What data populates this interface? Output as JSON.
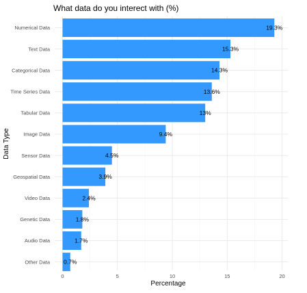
{
  "chart_data": {
    "type": "bar",
    "orientation": "horizontal",
    "title": "What data do you interect with (%)",
    "xlabel": "Percentage",
    "ylabel": "Data Type",
    "categories": [
      "Numerical Data",
      "Text Data",
      "Categorical Data",
      "Time Series Data",
      "Tabular Data",
      "Image Data",
      "Sensor Data",
      "Geospatial Data",
      "Video Data",
      "Genetic Data",
      "Audio Data",
      "Other Data"
    ],
    "values": [
      19.3,
      15.3,
      14.3,
      13.6,
      13,
      9.4,
      4.5,
      3.9,
      2.4,
      1.8,
      1.7,
      0.7
    ],
    "data_labels": [
      "19.3%",
      "15.3%",
      "14.3%",
      "13.6%",
      "13%",
      "9.4%",
      "4.5%",
      "3.9%",
      "2.4%",
      "1.8%",
      "1.7%",
      "0.7%"
    ],
    "x_ticks": [
      0,
      5,
      10,
      15,
      20
    ],
    "xlim": [
      0,
      20.3
    ],
    "grid": true,
    "bar_color": "#3399ff",
    "legend": "none"
  }
}
